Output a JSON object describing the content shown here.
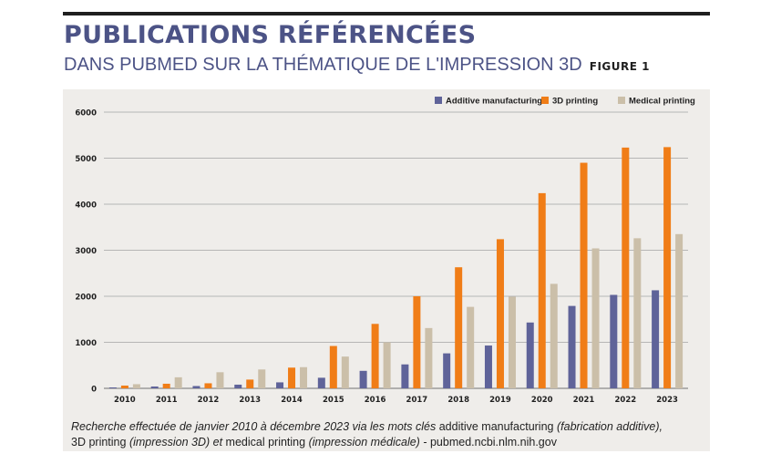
{
  "title": "PUBLICATIONS RÉFÉRENCÉES",
  "subtitle": "DANS PUBMED SUR LA THÉMATIQUE DE L'IMPRESSION 3D",
  "figure_label": "FIGURE 1",
  "caption": {
    "p1": "Recherche effectuée de janvier 2010 à décembre 2023 via les mots clés",
    "k1": "additive manufacturing",
    "p2": "(fabrication additive),",
    "k2": "3D printing",
    "p3": "(impression 3D) et",
    "k3": "medical printing",
    "p4": "(impression médicale) -",
    "src": "pubmed.ncbi.nlm.nih.gov"
  },
  "chart_data": {
    "type": "bar",
    "categories": [
      "2010",
      "2011",
      "2012",
      "2013",
      "2014",
      "2015",
      "2016",
      "2017",
      "2018",
      "2019",
      "2020",
      "2021",
      "2022",
      "2023"
    ],
    "ylim": [
      0,
      6000
    ],
    "yticks": [
      0,
      1000,
      2000,
      3000,
      4000,
      5000,
      6000
    ],
    "grid": true,
    "legend_position": "top-right",
    "series": [
      {
        "name": "Additive manufacturing",
        "color": "#5f6399",
        "values": [
          20,
          40,
          50,
          80,
          130,
          230,
          380,
          520,
          760,
          930,
          1430,
          1790,
          2030,
          2130
        ]
      },
      {
        "name": "3D printing",
        "color": "#f07d17",
        "values": [
          60,
          100,
          110,
          190,
          450,
          920,
          1400,
          2000,
          2630,
          3240,
          4240,
          4900,
          5230,
          5240
        ]
      },
      {
        "name": "Medical printing",
        "color": "#cbbfa9",
        "values": [
          90,
          240,
          350,
          410,
          460,
          690,
          1000,
          1310,
          1770,
          1990,
          2270,
          3040,
          3260,
          3350
        ]
      }
    ]
  }
}
